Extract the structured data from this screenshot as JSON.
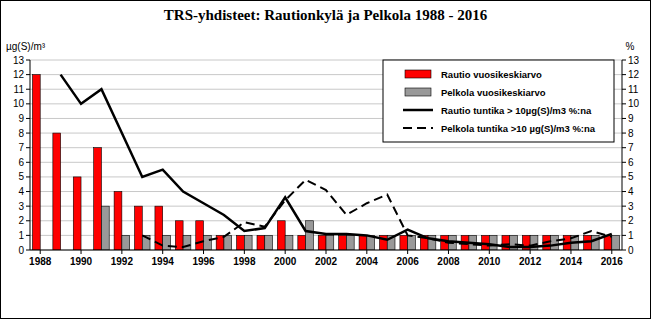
{
  "chart_data": {
    "type": "bar",
    "title": "TRS-yhdisteet: Rautionkylä ja Pelkola 1988 - 2016",
    "y_label": "µg(S)/m³",
    "y2_label": "%",
    "categories": [
      "1988",
      null,
      "1990",
      null,
      "1992",
      null,
      "1994",
      null,
      "1996",
      null,
      "1998",
      null,
      "2000",
      null,
      "2002",
      null,
      "2004",
      null,
      "2006",
      null,
      "2008",
      null,
      "2010",
      null,
      "2012",
      null,
      "2014",
      null,
      "2016"
    ],
    "series": [
      {
        "name": "Rautio vuosikeskiarvo",
        "type": "bar",
        "color": "#ff0000",
        "values": [
          12,
          8,
          5,
          7,
          4,
          3,
          3,
          2,
          2,
          1,
          1,
          1,
          2,
          1,
          1,
          1,
          1,
          1,
          1,
          1,
          1,
          1,
          1,
          1,
          1,
          1,
          1,
          1,
          1
        ]
      },
      {
        "name": "Pelkola vuosikeskiarvo",
        "type": "bar",
        "color": "#999999",
        "values": [
          null,
          null,
          null,
          3,
          1,
          1,
          1,
          1,
          1,
          1,
          1,
          1,
          1,
          2,
          1,
          1,
          1,
          1,
          1,
          1,
          1,
          1,
          1,
          1,
          1,
          1,
          1,
          1,
          1
        ]
      },
      {
        "name": "Rautio tuntika > 10µg(S)/m3 %:na",
        "type": "line",
        "color": "#000000",
        "line_style": "solid",
        "axis": "y2",
        "values": [
          null,
          12,
          10,
          11,
          8,
          5,
          5.5,
          4,
          3.2,
          2.4,
          1.3,
          1.5,
          3.6,
          1.3,
          1.1,
          1.1,
          1.0,
          0.7,
          1.4,
          0.8,
          0.6,
          0.5,
          0.4,
          0.2,
          0.2,
          0.3,
          0.5,
          0.6,
          1.1
        ]
      },
      {
        "name": "Pelkola tuntika >10 µg(S)/m3 %:na",
        "type": "line",
        "color": "#000000",
        "line_style": "dashed",
        "axis": "y2",
        "values": [
          null,
          null,
          null,
          null,
          null,
          1.0,
          0.3,
          0.2,
          0.6,
          0.9,
          1.9,
          1.6,
          3.4,
          4.8,
          4.1,
          2.4,
          3.2,
          3.8,
          1.0,
          0.8,
          0.5,
          0.4,
          0.3,
          0.4,
          0.3,
          0.6,
          0.8,
          1.3,
          0.9
        ]
      }
    ],
    "ylim": [
      0,
      13
    ],
    "yticks": [
      0,
      1,
      2,
      3,
      4,
      5,
      6,
      7,
      8,
      9,
      10,
      11,
      12,
      13
    ],
    "y2lim": [
      0,
      13
    ],
    "y2ticks": [
      0,
      1,
      2,
      3,
      4,
      5,
      6,
      7,
      8,
      9,
      10,
      11,
      12,
      13
    ],
    "grid": true,
    "legend": "upper right"
  }
}
